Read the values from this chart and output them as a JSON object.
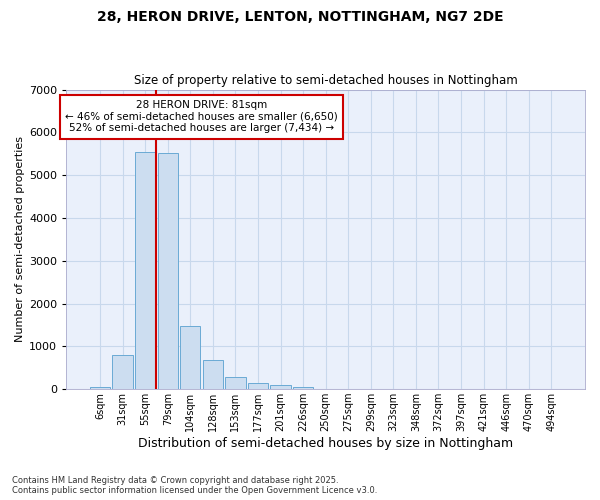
{
  "title1": "28, HERON DRIVE, LENTON, NOTTINGHAM, NG7 2DE",
  "title2": "Size of property relative to semi-detached houses in Nottingham",
  "xlabel": "Distribution of semi-detached houses by size in Nottingham",
  "ylabel": "Number of semi-detached properties",
  "bar_labels": [
    "6sqm",
    "31sqm",
    "55sqm",
    "79sqm",
    "104sqm",
    "128sqm",
    "153sqm",
    "177sqm",
    "201sqm",
    "226sqm",
    "250sqm",
    "275sqm",
    "299sqm",
    "323sqm",
    "348sqm",
    "372sqm",
    "397sqm",
    "421sqm",
    "446sqm",
    "470sqm",
    "494sqm"
  ],
  "bar_values": [
    60,
    800,
    5550,
    5520,
    1480,
    670,
    280,
    140,
    90,
    50,
    0,
    0,
    0,
    0,
    0,
    0,
    0,
    0,
    0,
    0,
    0
  ],
  "bar_color": "#ccddf0",
  "bar_edge_color": "#6aaad4",
  "grid_color": "#c8d8ec",
  "bg_color": "#ffffff",
  "plot_bg_color": "#eaf0fb",
  "red_line_x": 3,
  "property_sqm": 81,
  "pct_smaller": 46,
  "count_smaller": 6650,
  "pct_larger": 52,
  "count_larger": 7434,
  "annotation_box_color": "#ffffff",
  "annotation_box_edge": "#cc0000",
  "red_line_color": "#cc0000",
  "footer_line1": "Contains HM Land Registry data © Crown copyright and database right 2025.",
  "footer_line2": "Contains public sector information licensed under the Open Government Licence v3.0.",
  "ylim": [
    0,
    7000
  ],
  "yticks": [
    0,
    1000,
    2000,
    3000,
    4000,
    5000,
    6000,
    7000
  ]
}
